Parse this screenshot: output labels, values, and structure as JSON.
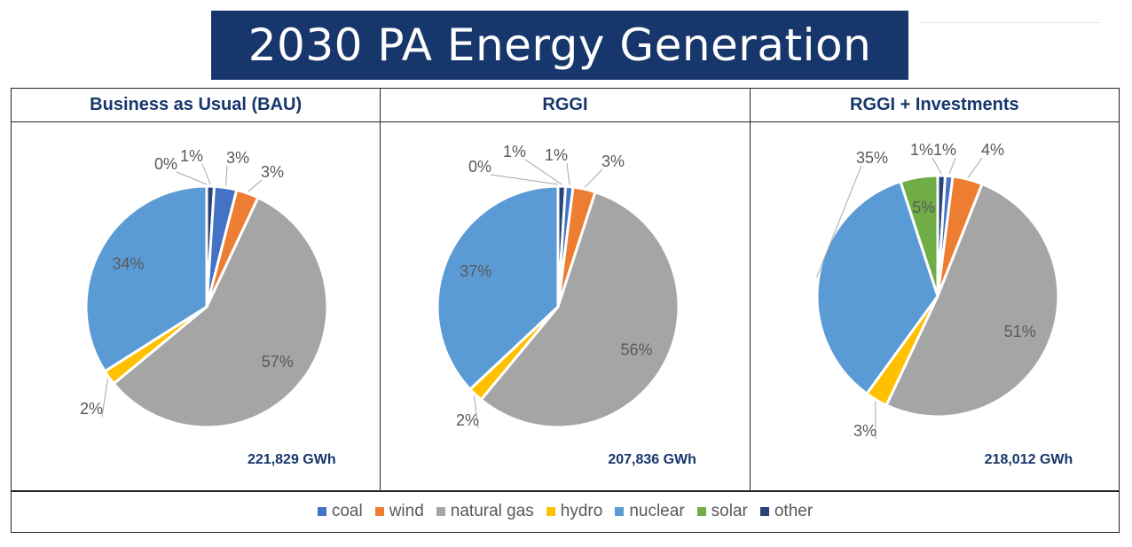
{
  "header": {
    "title": "2030 PA Energy Generation"
  },
  "colors": {
    "coal": "#4472c4",
    "wind": "#ed7d31",
    "natural gas": "#a5a5a5",
    "hydro": "#ffc000",
    "nuclear": "#5b9bd5",
    "solar": "#70ad47",
    "other": "#264478"
  },
  "chart_data": [
    {
      "type": "pie",
      "title": "Business as Usual (BAU)",
      "total_label": "221,829 GWh",
      "slices": [
        {
          "name": "other",
          "value": 1,
          "label": "1%"
        },
        {
          "name": "coal",
          "value": 3,
          "label": "3%"
        },
        {
          "name": "wind",
          "value": 3,
          "label": "3%"
        },
        {
          "name": "natural gas",
          "value": 57,
          "label": "57%"
        },
        {
          "name": "hydro",
          "value": 2,
          "label": "2%"
        },
        {
          "name": "nuclear",
          "value": 34,
          "label": "34%"
        },
        {
          "name": "solar",
          "value": 0,
          "label": "0%"
        }
      ]
    },
    {
      "type": "pie",
      "title": "RGGI",
      "total_label": "207,836 GWh",
      "slices": [
        {
          "name": "other",
          "value": 1,
          "label": "1%"
        },
        {
          "name": "coal",
          "value": 1,
          "label": "1%"
        },
        {
          "name": "wind",
          "value": 3,
          "label": "3%"
        },
        {
          "name": "natural gas",
          "value": 56,
          "label": "56%"
        },
        {
          "name": "hydro",
          "value": 2,
          "label": "2%"
        },
        {
          "name": "nuclear",
          "value": 37,
          "label": "37%"
        },
        {
          "name": "solar",
          "value": 0,
          "label": "0%"
        }
      ]
    },
    {
      "type": "pie",
      "title": "RGGI + Investments",
      "total_label": "218,012 GWh",
      "slices": [
        {
          "name": "other",
          "value": 1,
          "label": "1%"
        },
        {
          "name": "coal",
          "value": 1,
          "label": "1%"
        },
        {
          "name": "wind",
          "value": 4,
          "label": "4%"
        },
        {
          "name": "natural gas",
          "value": 51,
          "label": "51%"
        },
        {
          "name": "hydro",
          "value": 3,
          "label": "3%"
        },
        {
          "name": "nuclear",
          "value": 35,
          "label": "35%"
        },
        {
          "name": "solar",
          "value": 5,
          "label": "5%"
        }
      ]
    }
  ],
  "legend": {
    "position": "bottom",
    "items": [
      "coal",
      "wind",
      "natural gas",
      "hydro",
      "nuclear",
      "solar",
      "other"
    ]
  }
}
